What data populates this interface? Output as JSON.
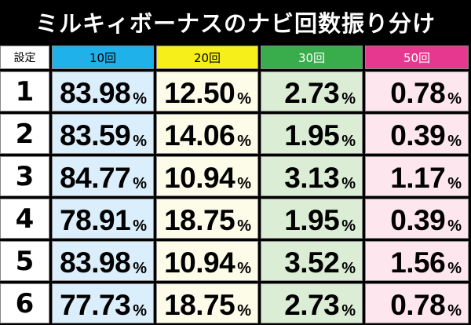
{
  "title": "ミルキィボーナスのナビ回数振り分け",
  "headers": {
    "setting": "設定",
    "col10": "10回",
    "col20": "20回",
    "col30": "30回",
    "col50": "50回"
  },
  "percent_sign": "%",
  "rows": [
    {
      "setting": "1",
      "v10": "83.98",
      "v20": "12.50",
      "v30": "2.73",
      "v50": "0.78"
    },
    {
      "setting": "2",
      "v10": "83.59",
      "v20": "14.06",
      "v30": "1.95",
      "v50": "0.39"
    },
    {
      "setting": "3",
      "v10": "84.77",
      "v20": "10.94",
      "v30": "3.13",
      "v50": "1.17"
    },
    {
      "setting": "4",
      "v10": "78.91",
      "v20": "18.75",
      "v30": "1.95",
      "v50": "0.39"
    },
    {
      "setting": "5",
      "v10": "83.98",
      "v20": "10.94",
      "v30": "3.52",
      "v50": "1.56"
    },
    {
      "setting": "6",
      "v10": "77.73",
      "v20": "18.75",
      "v30": "2.73",
      "v50": "0.78"
    }
  ],
  "colors": {
    "col10_header": "#1fb1ea",
    "col20_header": "#f7ef19",
    "col30_header": "#39ad4c",
    "col50_header": "#e7388f"
  }
}
